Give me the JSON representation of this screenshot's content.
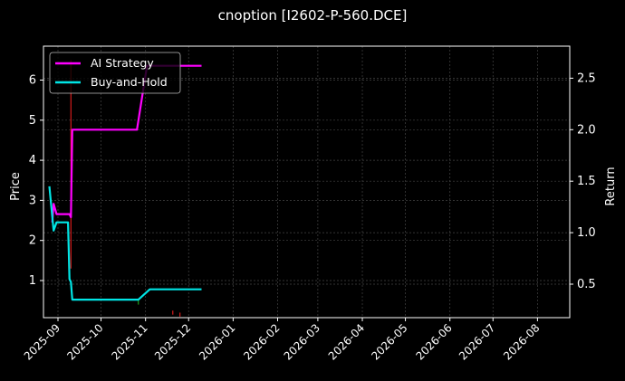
{
  "chart_data": {
    "type": "line",
    "title": "cnoption [I2602-P-560.DCE]",
    "xlabel": "",
    "ylabel": "Price",
    "ylabel_right": "Return",
    "x_ticks": [
      "2025-09",
      "2025-10",
      "2025-11",
      "2025-12",
      "2026-01",
      "2026-02",
      "2026-03",
      "2026-04",
      "2026-05",
      "2026-06",
      "2026-07",
      "2026-08"
    ],
    "y_ticks_left": [
      1,
      2,
      3,
      4,
      5,
      6
    ],
    "y_ticks_right": [
      0.5,
      1.0,
      1.5,
      2.0,
      2.5
    ],
    "ylim_left": [
      0.15,
      6.8
    ],
    "ylim_right": [
      0.18,
      2.8
    ],
    "grid": true,
    "legend_position": "upper left",
    "series": [
      {
        "name": "AI Strategy",
        "axis": "right",
        "color": "#ff00ff",
        "points": [
          [
            "2025-08-28",
            1.1
          ],
          [
            "2025-08-29",
            1.28
          ],
          [
            "2025-08-31",
            1.18
          ],
          [
            "2025-09-09",
            1.18
          ],
          [
            "2025-09-10",
            1.15
          ],
          [
            "2025-09-11",
            2.0
          ],
          [
            "2025-10-26",
            2.0
          ],
          [
            "2025-11-02",
            2.62
          ],
          [
            "2025-12-10",
            2.62
          ]
        ]
      },
      {
        "name": "Buy-and-Hold",
        "axis": "right",
        "color": "#00e5e5",
        "points": [
          [
            "2025-08-26",
            1.45
          ],
          [
            "2025-08-29",
            1.02
          ],
          [
            "2025-08-31",
            1.1
          ],
          [
            "2025-09-08",
            1.1
          ],
          [
            "2025-09-09",
            0.55
          ],
          [
            "2025-09-10",
            0.52
          ],
          [
            "2025-09-11",
            0.35
          ],
          [
            "2025-10-27",
            0.35
          ],
          [
            "2025-11-04",
            0.45
          ],
          [
            "2025-12-10",
            0.45
          ]
        ]
      }
    ],
    "candles_note": "faint red/green price candles on left Price axis",
    "candles": [
      {
        "date": "2025-09-10",
        "low": 1.3,
        "high": 6.5,
        "color": "#ff2020"
      },
      {
        "date": "2025-10-27",
        "low": 0.4,
        "high": 0.55,
        "color": "#20c020"
      },
      {
        "date": "2025-11-20",
        "low": 0.15,
        "high": 0.25,
        "color": "#ff2020"
      },
      {
        "date": "2025-11-25",
        "low": 0.1,
        "high": 0.2,
        "color": "#ff2020"
      }
    ]
  },
  "legend": {
    "items": [
      {
        "label": "AI Strategy",
        "color": "#ff00ff"
      },
      {
        "label": "Buy-and-Hold",
        "color": "#00e5e5"
      }
    ]
  }
}
